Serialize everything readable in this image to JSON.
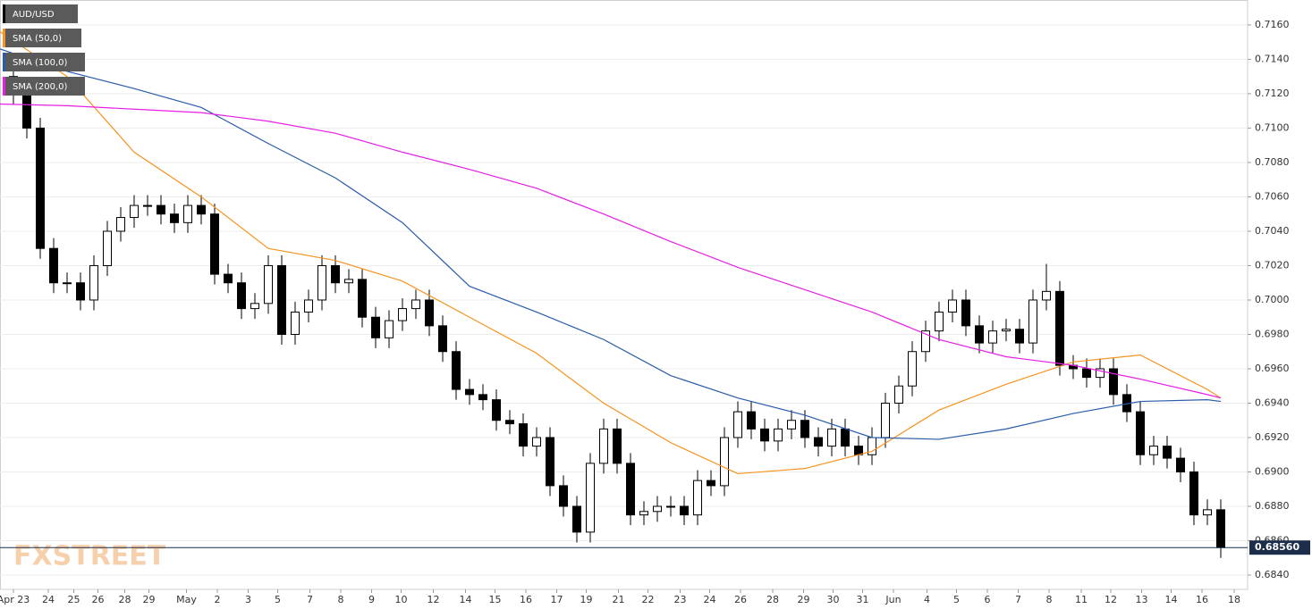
{
  "chart_data": {
    "type": "candlestick",
    "symbol": "AUD/USD",
    "watermark": "FXSTREET",
    "candle_colors": {
      "up": "#ffffff",
      "down": "#000000",
      "outline": "#000000"
    },
    "x": [
      1,
      2,
      3,
      4,
      5,
      6,
      7,
      8,
      9,
      10,
      11,
      12,
      13,
      14,
      15,
      16,
      17,
      18,
      19,
      20,
      21,
      22,
      23,
      24,
      25,
      26,
      27,
      28,
      29,
      30,
      31,
      32,
      33,
      34,
      35,
      36,
      37,
      38,
      39,
      40,
      41,
      42,
      43,
      44,
      45,
      46,
      47,
      48,
      49,
      50,
      51,
      52,
      53,
      54,
      55,
      56,
      57,
      58,
      59,
      60,
      61,
      62,
      63,
      64,
      65,
      66,
      67,
      68,
      69,
      70,
      71,
      72,
      73,
      74,
      75,
      76,
      77,
      78,
      79,
      80,
      81,
      82,
      83,
      84,
      85,
      86,
      87,
      88,
      89,
      90,
      91
    ],
    "open": [
      0.713,
      0.712,
      0.71,
      0.703,
      0.701,
      0.701,
      0.7,
      0.702,
      0.704,
      0.7048,
      0.7055,
      0.7055,
      0.705,
      0.7045,
      0.7055,
      0.705,
      0.7015,
      0.701,
      0.6995,
      0.6998,
      0.702,
      0.698,
      0.6993,
      0.7,
      0.702,
      0.701,
      0.7012,
      0.699,
      0.6978,
      0.6988,
      0.6995,
      0.7,
      0.6985,
      0.697,
      0.6948,
      0.6945,
      0.6942,
      0.693,
      0.6928,
      0.6915,
      0.692,
      0.6892,
      0.688,
      0.6865,
      0.6905,
      0.6925,
      0.6905,
      0.6875,
      0.6877,
      0.688,
      0.688,
      0.6875,
      0.6895,
      0.6892,
      0.692,
      0.6935,
      0.6925,
      0.6918,
      0.6925,
      0.693,
      0.692,
      0.6915,
      0.6925,
      0.6915,
      0.691,
      0.692,
      0.694,
      0.695,
      0.697,
      0.6982,
      0.6993,
      0.7,
      0.6985,
      0.6975,
      0.6982,
      0.6983,
      0.6975,
      0.7,
      0.7005,
      0.6962,
      0.696,
      0.6955,
      0.696,
      0.6945,
      0.6935,
      0.691,
      0.6915,
      0.6908,
      0.69,
      0.6875,
      0.6878
    ],
    "high": [
      0.7136,
      0.7126,
      0.7106,
      0.7036,
      0.7016,
      0.7016,
      0.7026,
      0.7046,
      0.7054,
      0.7061,
      0.7061,
      0.7061,
      0.7056,
      0.7061,
      0.7061,
      0.7056,
      0.7021,
      0.7016,
      0.7004,
      0.7026,
      0.7026,
      0.6999,
      0.7006,
      0.7026,
      0.7026,
      0.7018,
      0.7018,
      0.6996,
      0.6994,
      0.7001,
      0.7006,
      0.7006,
      0.6991,
      0.6976,
      0.6954,
      0.6951,
      0.6948,
      0.6936,
      0.6934,
      0.6926,
      0.6926,
      0.6898,
      0.6886,
      0.6911,
      0.6931,
      0.6931,
      0.6911,
      0.6883,
      0.6886,
      0.6886,
      0.6886,
      0.6901,
      0.6901,
      0.6926,
      0.6941,
      0.6941,
      0.6931,
      0.6931,
      0.6936,
      0.6936,
      0.6926,
      0.6931,
      0.6931,
      0.6921,
      0.6926,
      0.6946,
      0.6956,
      0.6976,
      0.6988,
      0.6999,
      0.7006,
      0.7006,
      0.6991,
      0.6988,
      0.6989,
      0.6989,
      0.7006,
      0.7021,
      0.7011,
      0.6968,
      0.6966,
      0.6966,
      0.6966,
      0.6951,
      0.6941,
      0.6921,
      0.6921,
      0.6914,
      0.6906,
      0.6884,
      0.6884
    ],
    "low": [
      0.7114,
      0.7094,
      0.7024,
      0.7004,
      0.7004,
      0.6994,
      0.6994,
      0.7014,
      0.7034,
      0.7042,
      0.7049,
      0.7044,
      0.7039,
      0.7039,
      0.7044,
      0.7009,
      0.7004,
      0.6989,
      0.6989,
      0.6992,
      0.6974,
      0.6974,
      0.6987,
      0.6994,
      0.7004,
      0.7004,
      0.6984,
      0.6972,
      0.6972,
      0.6982,
      0.6989,
      0.6979,
      0.6964,
      0.6942,
      0.6939,
      0.6936,
      0.6924,
      0.6922,
      0.6909,
      0.6909,
      0.6886,
      0.6874,
      0.6859,
      0.6859,
      0.6899,
      0.6899,
      0.6869,
      0.6869,
      0.6871,
      0.6874,
      0.6869,
      0.6869,
      0.6886,
      0.6886,
      0.6914,
      0.6919,
      0.6912,
      0.6912,
      0.6919,
      0.6914,
      0.6909,
      0.6909,
      0.6909,
      0.6904,
      0.6904,
      0.6914,
      0.6934,
      0.6944,
      0.6964,
      0.6976,
      0.6987,
      0.6979,
      0.6969,
      0.6969,
      0.6976,
      0.6969,
      0.6969,
      0.6994,
      0.6956,
      0.6954,
      0.6949,
      0.6949,
      0.6939,
      0.6929,
      0.6904,
      0.6904,
      0.6902,
      0.6894,
      0.6869,
      0.6869,
      0.685
    ],
    "close": [
      0.712,
      0.71,
      0.703,
      0.701,
      0.701,
      0.7,
      0.702,
      0.704,
      0.7048,
      0.7055,
      0.7055,
      0.705,
      0.7045,
      0.7055,
      0.705,
      0.7015,
      0.701,
      0.6995,
      0.6998,
      0.702,
      0.698,
      0.6993,
      0.7,
      0.702,
      0.701,
      0.7012,
      0.699,
      0.6978,
      0.6988,
      0.6995,
      0.7,
      0.6985,
      0.697,
      0.6948,
      0.6945,
      0.6942,
      0.693,
      0.6928,
      0.6915,
      0.692,
      0.6892,
      0.688,
      0.6865,
      0.6905,
      0.6925,
      0.6905,
      0.6875,
      0.6877,
      0.688,
      0.688,
      0.6875,
      0.6895,
      0.6892,
      0.692,
      0.6935,
      0.6925,
      0.6918,
      0.6925,
      0.693,
      0.692,
      0.6915,
      0.6925,
      0.6915,
      0.691,
      0.692,
      0.694,
      0.695,
      0.697,
      0.6982,
      0.6993,
      0.7,
      0.6985,
      0.6975,
      0.6982,
      0.6983,
      0.6975,
      0.7,
      0.7005,
      0.6962,
      0.696,
      0.6955,
      0.696,
      0.6945,
      0.6935,
      0.691,
      0.6915,
      0.6908,
      0.69,
      0.6875,
      0.6878,
      0.6856
    ],
    "series": [
      {
        "name": "SMA (50,0)",
        "color": "#f7931e",
        "x": [
          0,
          5,
          10,
          15,
          20,
          25,
          30,
          35,
          40,
          45,
          50,
          55,
          60,
          65,
          70,
          75,
          80,
          85,
          90,
          91
        ],
        "values": [
          0.7156,
          0.713,
          0.7086,
          0.706,
          0.703,
          0.7023,
          0.7011,
          0.699,
          0.6969,
          0.694,
          0.6917,
          0.6899,
          0.6902,
          0.6912,
          0.6936,
          0.6951,
          0.6964,
          0.6968,
          0.6948,
          0.6943
        ]
      },
      {
        "name": "SMA (100,0)",
        "color": "#2a5caa",
        "x": [
          0,
          5,
          10,
          15,
          20,
          25,
          30,
          35,
          40,
          45,
          50,
          55,
          60,
          65,
          70,
          75,
          80,
          85,
          90,
          91
        ],
        "values": [
          0.7146,
          0.7133,
          0.7123,
          0.7112,
          0.7091,
          0.7071,
          0.7045,
          0.7008,
          0.6993,
          0.6977,
          0.6956,
          0.6943,
          0.6933,
          0.692,
          0.6919,
          0.6925,
          0.6934,
          0.6941,
          0.6942,
          0.6941
        ]
      },
      {
        "name": "SMA (200,0)",
        "color": "#e61ee6",
        "x": [
          0,
          5,
          10,
          15,
          20,
          25,
          30,
          35,
          40,
          45,
          50,
          55,
          60,
          65,
          70,
          75,
          80,
          85,
          90,
          91
        ],
        "values": [
          0.7114,
          0.7113,
          0.7111,
          0.7109,
          0.7104,
          0.7097,
          0.7086,
          0.7076,
          0.7065,
          0.705,
          0.7034,
          0.7019,
          0.7006,
          0.6993,
          0.6977,
          0.6967,
          0.6962,
          0.6954,
          0.6945,
          0.6943
        ]
      }
    ],
    "last_price": {
      "value": 0.6856,
      "label": "0.68560"
    },
    "xlim": [
      0,
      93
    ],
    "ylim": [
      0.68317,
      0.71745
    ],
    "yticks": [
      {
        "value": 0.684,
        "label": "0.6840"
      },
      {
        "value": 0.686,
        "label": "0.6860"
      },
      {
        "value": 0.688,
        "label": "0.6880"
      },
      {
        "value": 0.69,
        "label": "0.6900"
      },
      {
        "value": 0.692,
        "label": "0.6920"
      },
      {
        "value": 0.694,
        "label": "0.6940"
      },
      {
        "value": 0.696,
        "label": "0.6960"
      },
      {
        "value": 0.698,
        "label": "0.6980"
      },
      {
        "value": 0.7,
        "label": "0.7000"
      },
      {
        "value": 0.702,
        "label": "0.7020"
      },
      {
        "value": 0.704,
        "label": "0.7040"
      },
      {
        "value": 0.706,
        "label": "0.7060"
      },
      {
        "value": 0.708,
        "label": "0.7080"
      },
      {
        "value": 0.71,
        "label": "0.7100"
      },
      {
        "value": 0.712,
        "label": "0.7120"
      },
      {
        "value": 0.714,
        "label": "0.7140"
      },
      {
        "value": 0.716,
        "label": "0.7160"
      }
    ],
    "xticks": [
      {
        "value": 1,
        "label": "Apr 23"
      },
      {
        "value": 3.6,
        "label": "24"
      },
      {
        "value": 5.5,
        "label": "25"
      },
      {
        "value": 7.3,
        "label": "26"
      },
      {
        "value": 9.3,
        "label": "28"
      },
      {
        "value": 11.1,
        "label": "29"
      },
      {
        "value": 13.9,
        "label": "May"
      },
      {
        "value": 16.2,
        "label": "2"
      },
      {
        "value": 18.5,
        "label": "3"
      },
      {
        "value": 20.7,
        "label": "5"
      },
      {
        "value": 23.1,
        "label": "7"
      },
      {
        "value": 25.4,
        "label": "8"
      },
      {
        "value": 27.7,
        "label": "9"
      },
      {
        "value": 29.9,
        "label": "10"
      },
      {
        "value": 32.3,
        "label": "12"
      },
      {
        "value": 34.7,
        "label": "14"
      },
      {
        "value": 36.9,
        "label": "15"
      },
      {
        "value": 39.2,
        "label": "16"
      },
      {
        "value": 41.5,
        "label": "17"
      },
      {
        "value": 43.7,
        "label": "19"
      },
      {
        "value": 46.1,
        "label": "21"
      },
      {
        "value": 48.3,
        "label": "22"
      },
      {
        "value": 50.7,
        "label": "23"
      },
      {
        "value": 52.9,
        "label": "24"
      },
      {
        "value": 55.2,
        "label": "26"
      },
      {
        "value": 57.6,
        "label": "28"
      },
      {
        "value": 59.9,
        "label": "29"
      },
      {
        "value": 62.1,
        "label": "30"
      },
      {
        "value": 64.3,
        "label": "31"
      },
      {
        "value": 66.6,
        "label": "Jun"
      },
      {
        "value": 69.1,
        "label": "4"
      },
      {
        "value": 71.3,
        "label": "5"
      },
      {
        "value": 73.6,
        "label": "6"
      },
      {
        "value": 75.9,
        "label": "7"
      },
      {
        "value": 78.2,
        "label": "8"
      },
      {
        "value": 80.6,
        "label": "11"
      },
      {
        "value": 82.8,
        "label": "12"
      },
      {
        "value": 85.1,
        "label": "13"
      },
      {
        "value": 87.3,
        "label": "14"
      },
      {
        "value": 89.6,
        "label": "16"
      },
      {
        "value": 92,
        "label": "18"
      }
    ],
    "grid": true
  }
}
